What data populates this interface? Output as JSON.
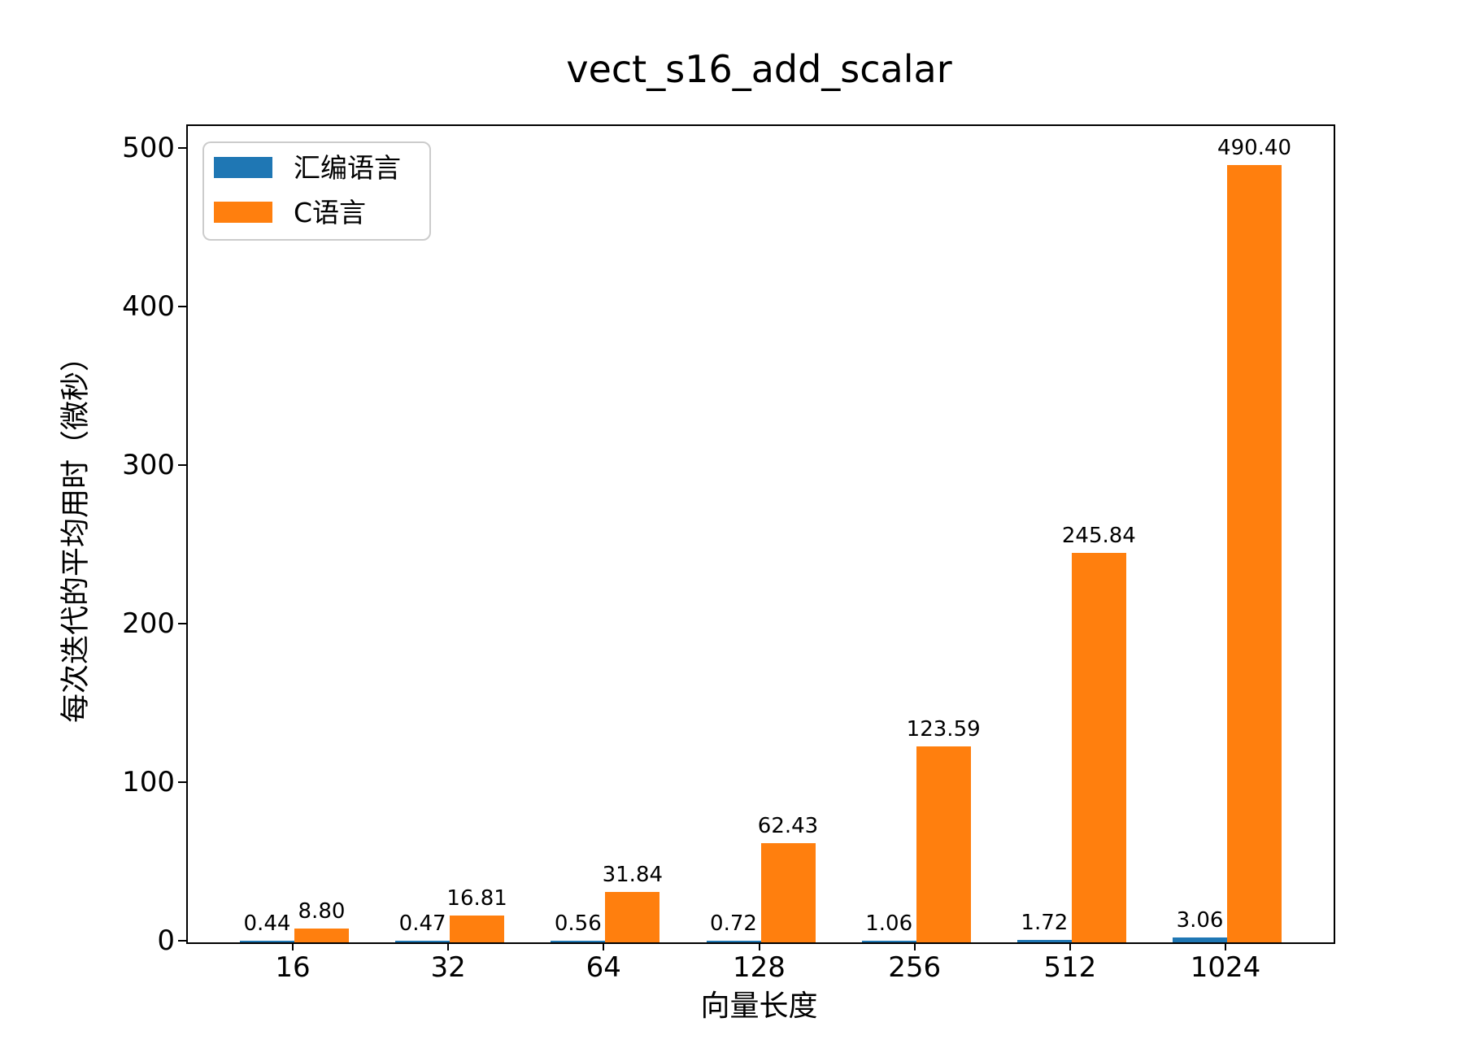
{
  "title": "vect_s16_add_scalar",
  "colors": {
    "assembly_series": "#1f77b4",
    "c_series": "#ff7f0e",
    "axis": "#000000",
    "legend_border": "#cccccc",
    "background": "#ffffff"
  },
  "chart_data": {
    "type": "bar",
    "title": "vect_s16_add_scalar",
    "xlabel": "向量长度",
    "ylabel": "每次迭代的平均用时（微秒）",
    "categories": [
      "16",
      "32",
      "64",
      "128",
      "256",
      "512",
      "1024"
    ],
    "series": [
      {
        "key": "assembly",
        "name": "汇编语言",
        "color": "#1f77b4",
        "values": [
          0.44,
          0.47,
          0.56,
          0.72,
          1.06,
          1.72,
          3.06
        ]
      },
      {
        "key": "c",
        "name": "C语言",
        "color": "#ff7f0e",
        "values": [
          8.8,
          16.81,
          31.84,
          62.43,
          123.59,
          245.84,
          490.4
        ]
      }
    ],
    "yticks": [
      0,
      100,
      200,
      300,
      400,
      500
    ],
    "ylim": [
      0,
      515
    ],
    "grid": false,
    "legend_position": "upper left",
    "bar_value_labels": true,
    "value_decimals": 2
  }
}
